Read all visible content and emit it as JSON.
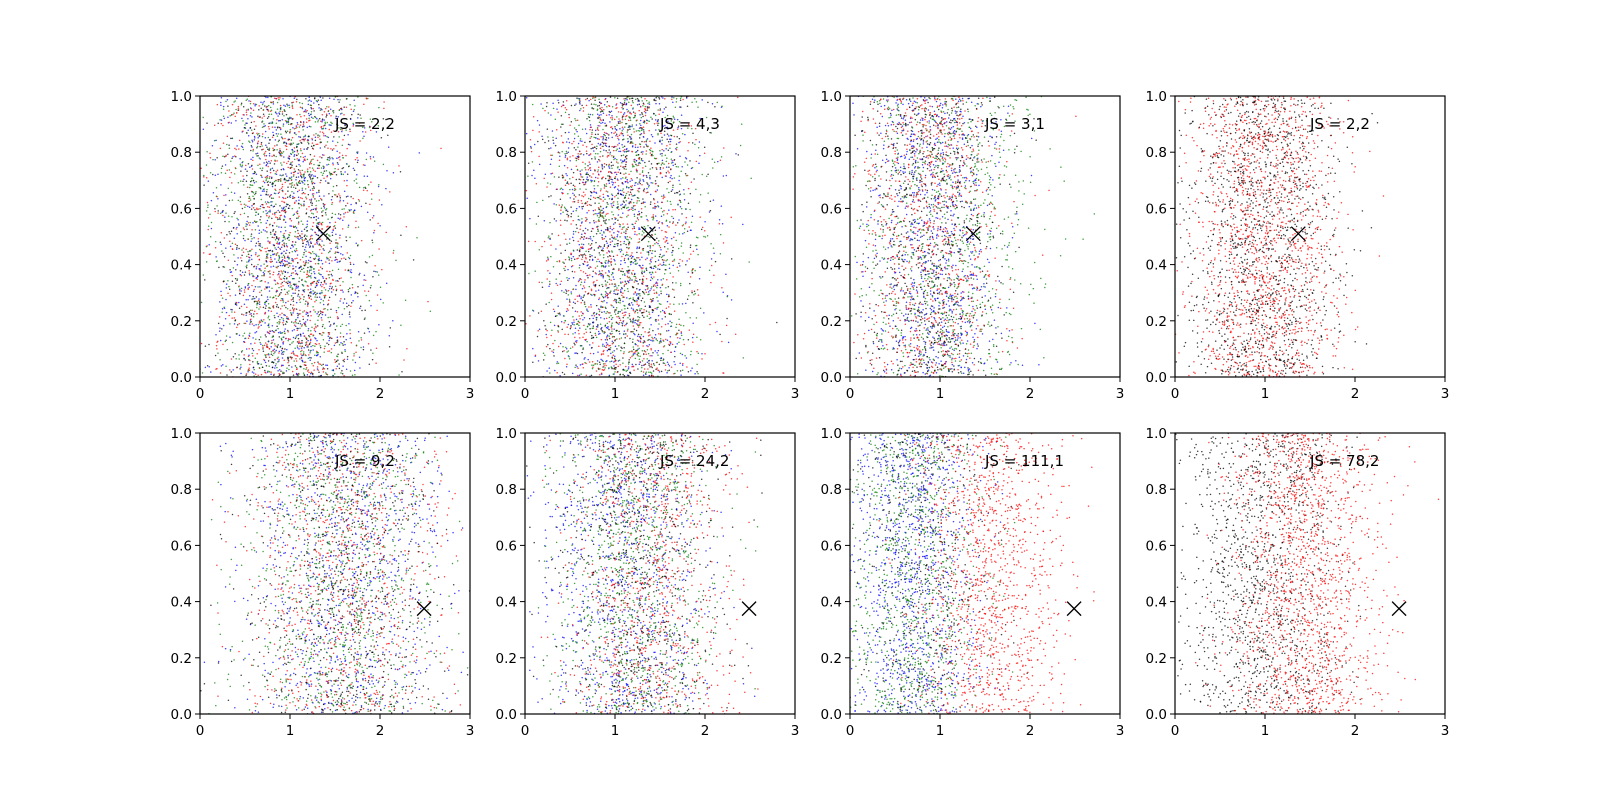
{
  "chart_data": [
    {
      "type": "scatter",
      "annotation": "JS = 2,2",
      "marker": {
        "symbol": "x",
        "x": 1.37,
        "y": 0.51
      },
      "xlim": [
        0,
        3
      ],
      "ylim": [
        0,
        1
      ],
      "xticks": [
        "0",
        "1",
        "2",
        "3"
      ],
      "yticks": [
        "0.0",
        "0.2",
        "0.4",
        "0.6",
        "0.8",
        "1.0"
      ],
      "series": [
        {
          "color": "#0000ff",
          "x_center": 1.0,
          "x_spread": 0.45,
          "count": 900
        },
        {
          "color": "#ff0000",
          "x_center": 1.0,
          "x_spread": 0.45,
          "count": 900
        },
        {
          "color": "#008000",
          "x_center": 1.0,
          "x_spread": 0.45,
          "count": 900
        },
        {
          "color": "#000000",
          "x_center": 1.0,
          "x_spread": 0.45,
          "count": 700
        }
      ]
    },
    {
      "type": "scatter",
      "annotation": "JS = 4,3",
      "marker": {
        "symbol": "x",
        "x": 1.37,
        "y": 0.51
      },
      "xlim": [
        0,
        3
      ],
      "ylim": [
        0,
        1
      ],
      "xticks": [
        "0",
        "1",
        "2",
        "3"
      ],
      "yticks": [
        "0.0",
        "0.2",
        "0.4",
        "0.6",
        "0.8",
        "1.0"
      ],
      "series": [
        {
          "color": "#0000ff",
          "x_center": 1.05,
          "x_spread": 0.45,
          "count": 900
        },
        {
          "color": "#ff0000",
          "x_center": 1.05,
          "x_spread": 0.45,
          "count": 900
        },
        {
          "color": "#008000",
          "x_center": 1.1,
          "x_spread": 0.5,
          "count": 900
        },
        {
          "color": "#000000",
          "x_center": 1.05,
          "x_spread": 0.45,
          "count": 700
        }
      ]
    },
    {
      "type": "scatter",
      "annotation": "JS = 3,1",
      "marker": {
        "symbol": "x",
        "x": 1.37,
        "y": 0.51
      },
      "xlim": [
        0,
        3
      ],
      "ylim": [
        0,
        1
      ],
      "xticks": [
        "0",
        "1",
        "2",
        "3"
      ],
      "yticks": [
        "0.0",
        "0.2",
        "0.4",
        "0.6",
        "0.8",
        "1.0"
      ],
      "series": [
        {
          "color": "#0000ff",
          "x_center": 0.9,
          "x_spread": 0.4,
          "count": 900
        },
        {
          "color": "#ff0000",
          "x_center": 0.9,
          "x_spread": 0.4,
          "count": 900
        },
        {
          "color": "#008000",
          "x_center": 1.05,
          "x_spread": 0.5,
          "count": 900
        },
        {
          "color": "#000000",
          "x_center": 0.9,
          "x_spread": 0.4,
          "count": 700
        }
      ]
    },
    {
      "type": "scatter",
      "annotation": "JS = 2,2",
      "marker": {
        "symbol": "x",
        "x": 1.37,
        "y": 0.51
      },
      "xlim": [
        0,
        3
      ],
      "ylim": [
        0,
        1
      ],
      "xticks": [
        "0",
        "1",
        "2",
        "3"
      ],
      "yticks": [
        "0.0",
        "0.2",
        "0.4",
        "0.6",
        "0.8",
        "1.0"
      ],
      "series": [
        {
          "color": "#ff0000",
          "x_center": 1.0,
          "x_spread": 0.42,
          "count": 1500
        },
        {
          "color": "#000000",
          "x_center": 1.0,
          "x_spread": 0.42,
          "count": 1300
        }
      ]
    },
    {
      "type": "scatter",
      "annotation": "JS = 9,2",
      "marker": {
        "symbol": "x",
        "x": 2.49,
        "y": 0.375
      },
      "xlim": [
        0,
        3
      ],
      "ylim": [
        0,
        1
      ],
      "xticks": [
        "0",
        "1",
        "2",
        "3"
      ],
      "yticks": [
        "0.0",
        "0.2",
        "0.4",
        "0.6",
        "0.8",
        "1.0"
      ],
      "series": [
        {
          "color": "#0000ff",
          "x_center": 1.6,
          "x_spread": 0.55,
          "count": 900
        },
        {
          "color": "#ff0000",
          "x_center": 1.6,
          "x_spread": 0.55,
          "count": 900
        },
        {
          "color": "#008000",
          "x_center": 1.55,
          "x_spread": 0.55,
          "count": 900
        },
        {
          "color": "#000000",
          "x_center": 1.6,
          "x_spread": 0.55,
          "count": 700
        }
      ]
    },
    {
      "type": "scatter",
      "annotation": "JS = 24,2",
      "marker": {
        "symbol": "x",
        "x": 2.49,
        "y": 0.375
      },
      "xlim": [
        0,
        3
      ],
      "ylim": [
        0,
        1
      ],
      "xticks": [
        "0",
        "1",
        "2",
        "3"
      ],
      "yticks": [
        "0.0",
        "0.2",
        "0.4",
        "0.6",
        "0.8",
        "1.0"
      ],
      "series": [
        {
          "color": "#0000ff",
          "x_center": 1.1,
          "x_spread": 0.45,
          "count": 900
        },
        {
          "color": "#ff0000",
          "x_center": 1.4,
          "x_spread": 0.45,
          "count": 900
        },
        {
          "color": "#008000",
          "x_center": 1.2,
          "x_spread": 0.45,
          "count": 900
        },
        {
          "color": "#000000",
          "x_center": 1.25,
          "x_spread": 0.45,
          "count": 700
        }
      ]
    },
    {
      "type": "scatter",
      "annotation": "JS = 111,1",
      "marker": {
        "symbol": "x",
        "x": 2.49,
        "y": 0.375
      },
      "xlim": [
        0,
        3
      ],
      "ylim": [
        0,
        1
      ],
      "xticks": [
        "0",
        "1",
        "2",
        "3"
      ],
      "yticks": [
        "0.0",
        "0.2",
        "0.4",
        "0.6",
        "0.8",
        "1.0"
      ],
      "series": [
        {
          "color": "#0000ff",
          "x_center": 0.7,
          "x_spread": 0.38,
          "count": 1000
        },
        {
          "color": "#008000",
          "x_center": 0.7,
          "x_spread": 0.38,
          "count": 900
        },
        {
          "color": "#000000",
          "x_center": 0.8,
          "x_spread": 0.4,
          "count": 500
        },
        {
          "color": "#ff0000",
          "x_center": 1.55,
          "x_spread": 0.4,
          "count": 1200
        }
      ]
    },
    {
      "type": "scatter",
      "annotation": "JS = 78,2",
      "marker": {
        "symbol": "x",
        "x": 2.49,
        "y": 0.375
      },
      "xlim": [
        0,
        3
      ],
      "ylim": [
        0,
        1
      ],
      "xticks": [
        "0",
        "1",
        "2",
        "3"
      ],
      "yticks": [
        "0.0",
        "0.2",
        "0.4",
        "0.6",
        "0.8",
        "1.0"
      ],
      "series": [
        {
          "color": "#000000",
          "x_center": 0.95,
          "x_spread": 0.45,
          "count": 1300
        },
        {
          "color": "#ff0000",
          "x_center": 1.45,
          "x_spread": 0.42,
          "count": 1500
        }
      ]
    }
  ]
}
